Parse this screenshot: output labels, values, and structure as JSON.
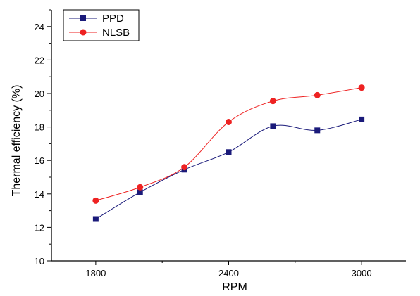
{
  "chart_data": {
    "type": "line",
    "xlabel": "RPM",
    "ylabel": "Thermal efficiency (%)",
    "xlim": [
      1600,
      3200
    ],
    "ylim": [
      10,
      25
    ],
    "x_ticks": [
      1800,
      2400,
      3000
    ],
    "x_tick_labels": [
      "1800",
      "2400",
      "3000"
    ],
    "y_ticks": [
      10,
      12,
      14,
      16,
      18,
      20,
      22,
      24
    ],
    "y_tick_labels": [
      "10",
      "12",
      "14",
      "16",
      "18",
      "20",
      "22",
      "24"
    ],
    "grid": false,
    "legend_position": "top-left",
    "series": [
      {
        "name": "PPD",
        "color": "#1a1a7a",
        "marker": "square",
        "x": [
          1800,
          2000,
          2200,
          2400,
          2600,
          2800,
          3000
        ],
        "values": [
          12.5,
          14.1,
          15.45,
          16.5,
          18.05,
          17.8,
          18.45
        ]
      },
      {
        "name": "NLSB",
        "color": "#ee2222",
        "marker": "circle",
        "x": [
          1800,
          2000,
          2200,
          2400,
          2600,
          2800,
          3000
        ],
        "values": [
          13.6,
          14.4,
          15.6,
          18.3,
          19.55,
          19.9,
          20.35
        ]
      }
    ]
  }
}
